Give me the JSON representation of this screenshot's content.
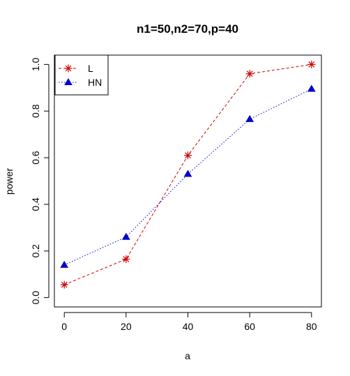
{
  "chart_data": {
    "type": "line",
    "title": "n1=50,n2=70,p=40",
    "xlabel": "a",
    "ylabel": "power",
    "x": [
      0,
      20,
      40,
      60,
      80
    ],
    "xlim": [
      -3.2,
      83.2
    ],
    "ylim": [
      -0.04,
      1.04
    ],
    "xticks": [
      "0",
      "20",
      "40",
      "60",
      "80"
    ],
    "yticks": [
      "0.0",
      "0.2",
      "0.4",
      "0.6",
      "0.8",
      "1.0"
    ],
    "series": [
      {
        "name": "L",
        "values": [
          0.055,
          0.165,
          0.61,
          0.96,
          1.0
        ],
        "color": "#cc0000",
        "marker": "asterisk",
        "line": "dashed"
      },
      {
        "name": "HN",
        "values": [
          0.14,
          0.26,
          0.53,
          0.765,
          0.895
        ],
        "color": "#0000cc",
        "marker": "triangle",
        "line": "dotted"
      }
    ],
    "legend_position": "top-left",
    "grid": false
  }
}
